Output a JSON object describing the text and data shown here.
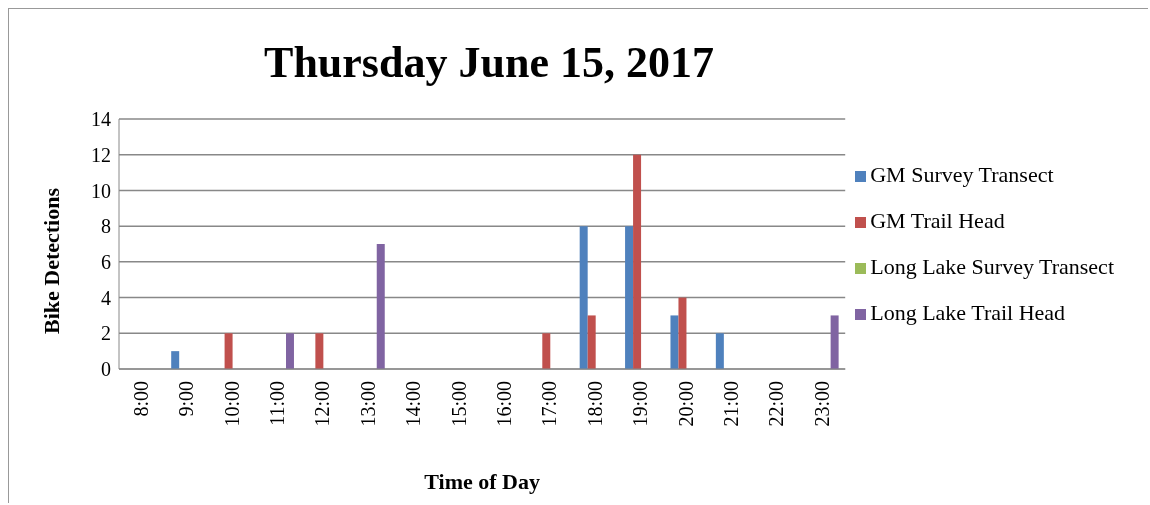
{
  "chart_data": {
    "type": "bar",
    "title": "Thursday June 15, 2017",
    "xlabel": "Time of Day",
    "ylabel": "Bike Detections",
    "categories": [
      "8:00",
      "9:00",
      "10:00",
      "11:00",
      "12:00",
      "13:00",
      "14:00",
      "15:00",
      "16:00",
      "17:00",
      "18:00",
      "19:00",
      "20:00",
      "21:00",
      "22:00",
      "23:00"
    ],
    "series": [
      {
        "name": "GM Survey Transect",
        "color": "#4f81bd",
        "values": [
          0,
          1,
          0,
          0,
          0,
          0,
          0,
          0,
          0,
          0,
          8,
          8,
          3,
          2,
          0,
          0
        ]
      },
      {
        "name": "GM Trail Head",
        "color": "#c0504d",
        "values": [
          0,
          0,
          2,
          0,
          2,
          0,
          0,
          0,
          0,
          2,
          3,
          12,
          4,
          0,
          0,
          0
        ]
      },
      {
        "name": "Long Lake Survey Transect",
        "color": "#9bbb59",
        "values": [
          0,
          0,
          0,
          0,
          0,
          0,
          0,
          0,
          0,
          0,
          0,
          0,
          0,
          0,
          0,
          0
        ]
      },
      {
        "name": "Long Lake Trail Head",
        "color": "#8064a2",
        "values": [
          0,
          0,
          0,
          2,
          0,
          7,
          0,
          0,
          0,
          0,
          0,
          0,
          0,
          0,
          0,
          3
        ]
      }
    ],
    "ylim": [
      0,
      14
    ],
    "yticks": [
      0,
      2,
      4,
      6,
      8,
      10,
      12,
      14
    ],
    "grid": "y",
    "legend": "right"
  }
}
